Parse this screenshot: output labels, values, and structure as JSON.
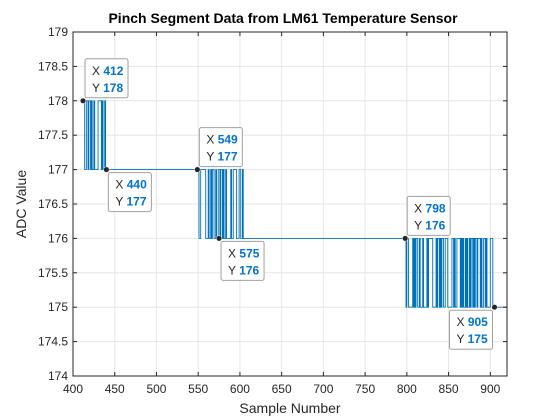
{
  "chart_data": {
    "type": "line",
    "title": "Pinch Segment Data from LM61 Temperature Sensor",
    "xlabel": "Sample Number",
    "ylabel": "ADC Value",
    "xlim": [
      400,
      920
    ],
    "ylim": [
      174,
      179
    ],
    "xticks": [
      400,
      450,
      500,
      550,
      600,
      650,
      700,
      750,
      800,
      850,
      900
    ],
    "yticks": [
      174,
      174.5,
      175,
      175.5,
      176,
      176.5,
      177,
      177.5,
      178,
      178.5,
      179
    ],
    "grid": true,
    "colors": {
      "line": "#0072bd",
      "marker": "#262626",
      "tip_value": "#0072d0"
    },
    "segments": [
      {
        "x_start": 412,
        "x_end": 440,
        "high": 178,
        "low": 177
      },
      {
        "x_start": 440,
        "x_end": 549,
        "high": 177,
        "low": 177
      },
      {
        "x_start": 549,
        "x_end": 605,
        "high": 177,
        "low": 176
      },
      {
        "x_start": 605,
        "x_end": 798,
        "high": 176,
        "low": 176
      },
      {
        "x_start": 798,
        "x_end": 905,
        "high": 176,
        "low": 175
      },
      {
        "x_start": 905,
        "x_end": 920,
        "high": 175,
        "low": 175
      }
    ],
    "datatips": [
      {
        "x": 412,
        "y": 178,
        "x_label": "X",
        "y_label": "Y",
        "place": "upper-right"
      },
      {
        "x": 440,
        "y": 177,
        "x_label": "X",
        "y_label": "Y",
        "place": "lower-right"
      },
      {
        "x": 549,
        "y": 177,
        "x_label": "X",
        "y_label": "Y",
        "place": "upper-right"
      },
      {
        "x": 575,
        "y": 176,
        "x_label": "X",
        "y_label": "Y",
        "place": "lower-right"
      },
      {
        "x": 798,
        "y": 176,
        "x_label": "X",
        "y_label": "Y",
        "place": "upper-right"
      },
      {
        "x": 905,
        "y": 175,
        "x_label": "X",
        "y_label": "Y",
        "place": "lower-left"
      }
    ]
  }
}
